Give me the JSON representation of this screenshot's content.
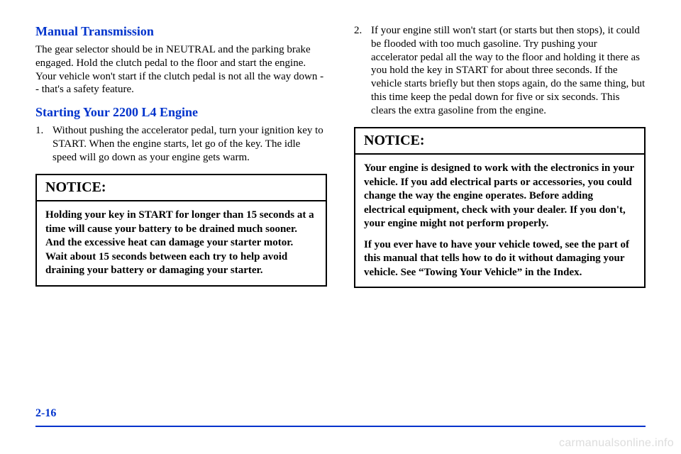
{
  "left": {
    "h1": "Manual Transmission",
    "p1": "The gear selector should be in NEUTRAL and the parking brake engaged. Hold the clutch pedal to the floor and start the engine. Your vehicle won't start if the clutch pedal is not all the way down -- that's a safety feature.",
    "h2": "Starting Your 2200 L4 Engine",
    "li1_num": "1.",
    "li1_text": "Without pushing the accelerator pedal, turn your ignition key to START. When the engine starts, let go of the key. The idle speed will go down as your engine gets warm.",
    "notice_title": "NOTICE:",
    "notice_body": "Holding your key in START for longer than 15 seconds at a time will cause your battery to be drained much sooner. And the excessive heat can damage your starter motor. Wait about 15 seconds between each try to help avoid draining your battery or damaging your starter."
  },
  "right": {
    "li2_num": "2.",
    "li2_text": "If your engine still won't start (or starts but then stops), it could be flooded with too much gasoline. Try pushing your accelerator pedal all the way to the floor and holding it there as you hold the key in START for about three seconds. If the vehicle starts briefly but then stops again, do the same thing, but this time keep the pedal down for five or six seconds. This clears the extra gasoline from the engine.",
    "notice_title": "NOTICE:",
    "notice_p1": "Your engine is designed to work with the electronics in your vehicle. If you add electrical parts or accessories, you could change the way the engine operates. Before adding electrical equipment, check with your dealer. If you don't, your engine might not perform properly.",
    "notice_p2": "If you ever have to have your vehicle towed, see the part of this manual that tells how to do it without damaging your vehicle. See “Towing Your Vehicle” in the Index."
  },
  "page_number": "2-16",
  "watermark": "carmanualsonline.info",
  "colors": {
    "link_blue": "#0033cc",
    "text": "#000000",
    "watermark": "#dddddd",
    "background": "#ffffff"
  }
}
